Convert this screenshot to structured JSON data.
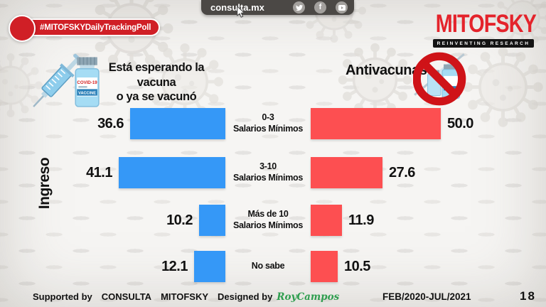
{
  "header": {
    "badge": "#MITOFSKYDailyTrackingPoll",
    "site": "consulta.mx",
    "social_icons": [
      "twitter-icon",
      "facebook-icon",
      "youtube-icon"
    ],
    "logo": "MITOFSKY",
    "logo_tagline": "REINVENTING RESEARCH"
  },
  "left_panel": {
    "title_line1": "Está esperando la vacuna",
    "title_line2": "o ya se vacunó",
    "icon": "syringe-vaccine-vial-icon"
  },
  "right_panel": {
    "title": "Antivacunas",
    "icon": "no-vaccine-prohibition-icon"
  },
  "chart_data": {
    "type": "bar",
    "orientation": "horizontal-diverging",
    "axis_label": "Ingreso",
    "categories": [
      "0-3 Salarios Mínimos",
      "3-10 Salarios Mínimos",
      "Más de 10 Salarios Mínimos",
      "No sabe"
    ],
    "series": [
      {
        "name": "Está esperando la vacuna o ya se vacunó",
        "color": "#3598f7",
        "values": [
          36.6,
          41.1,
          10.2,
          12.1
        ]
      },
      {
        "name": "Antivacunas",
        "color": "#fd4f51",
        "values": [
          50.0,
          27.6,
          11.9,
          10.5
        ]
      }
    ],
    "value_range": [
      0,
      50
    ],
    "grid": false,
    "rows": [
      {
        "cat_line1": "0-3",
        "cat_line2": "Salarios Mínimos",
        "left_value": 36.6,
        "left_label": "36.6",
        "right_value": 50.0,
        "right_label": "50.0"
      },
      {
        "cat_line1": "3-10",
        "cat_line2": "Salarios Mínimos",
        "left_value": 41.1,
        "left_label": "41.1",
        "right_value": 27.6,
        "right_label": "27.6"
      },
      {
        "cat_line1": "Más de 10",
        "cat_line2": "Salarios Mínimos",
        "left_value": 10.2,
        "left_label": "10.2",
        "right_value": 11.9,
        "right_label": "11.9"
      },
      {
        "cat_line1": "No sabe",
        "cat_line2": "",
        "left_value": 12.1,
        "left_label": "12.1",
        "right_value": 10.5,
        "right_label": "10.5"
      }
    ]
  },
  "footer": {
    "supported_by": "Supported by",
    "brand1": "CONSULTA",
    "brand2": "MITOFSKY",
    "designed_by": "Designed by",
    "designer": "RoyCampos",
    "date_range": "FEB/2020-JUL/2021",
    "page_number": "18"
  },
  "colors": {
    "blue_bar": "#3598f7",
    "red_bar": "#fd4f51",
    "badge_red": "#d01f26",
    "logo_red": "#e4232b",
    "prohibition_red": "#cf1318",
    "designer_green": "#2f9e4f",
    "topbar_gray": "#4b4845"
  }
}
